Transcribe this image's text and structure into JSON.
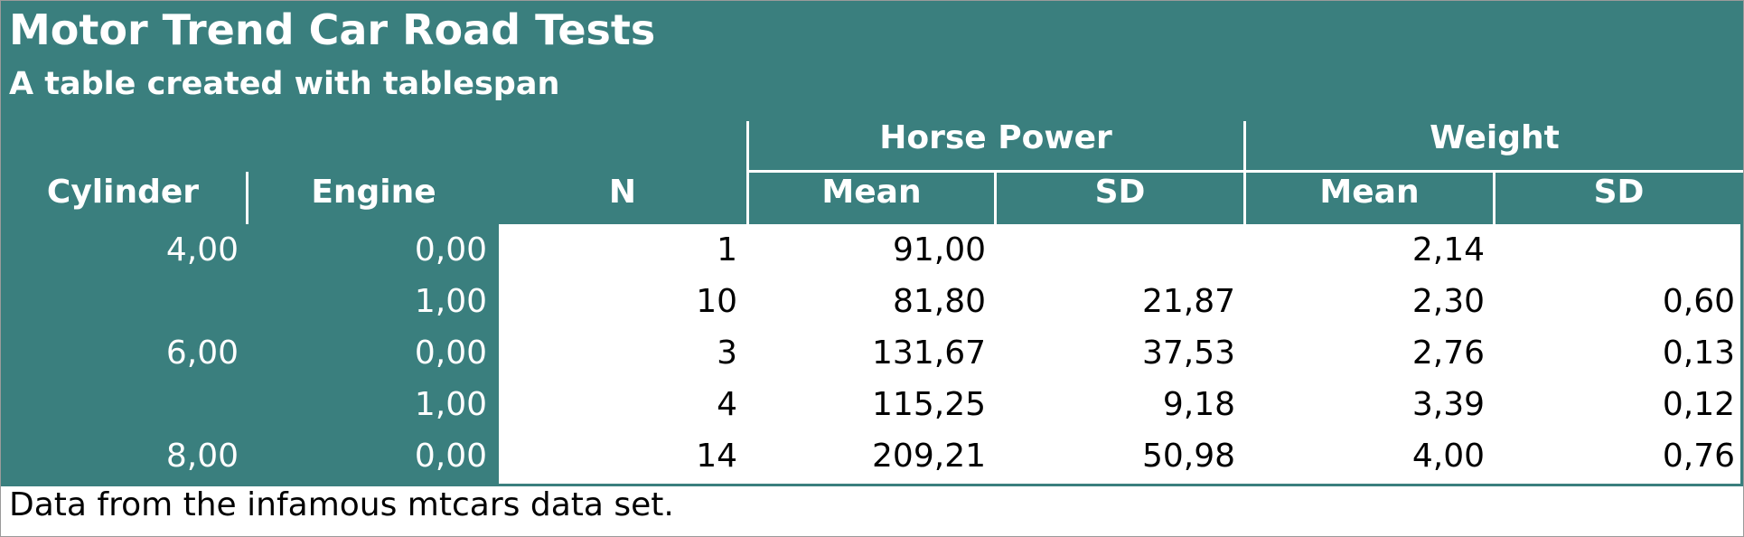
{
  "table": {
    "title": "Motor Trend Car Road Tests",
    "subtitle": "A table created with tablespan",
    "spanners": {
      "horse_power": "Horse Power",
      "weight": "Weight"
    },
    "columns": [
      "Cylinder",
      "Engine",
      "N",
      "Mean",
      "SD",
      "Mean",
      "SD"
    ],
    "rows": [
      [
        "4,00",
        "0,00",
        "1",
        "91,00",
        "",
        "2,14",
        ""
      ],
      [
        "",
        "1,00",
        "10",
        "81,80",
        "21,87",
        "2,30",
        "0,60"
      ],
      [
        "6,00",
        "0,00",
        "3",
        "131,67",
        "37,53",
        "2,76",
        "0,13"
      ],
      [
        "",
        "1,00",
        "4",
        "115,25",
        "9,18",
        "3,39",
        "0,12"
      ],
      [
        "8,00",
        "0,00",
        "14",
        "209,21",
        "50,98",
        "4,00",
        "0,76"
      ]
    ],
    "footnote": "Data from the infamous mtcars data set."
  },
  "colors": {
    "header_bg": "#3a7f7e",
    "header_text": "#ffffff",
    "body_text": "#000000"
  }
}
